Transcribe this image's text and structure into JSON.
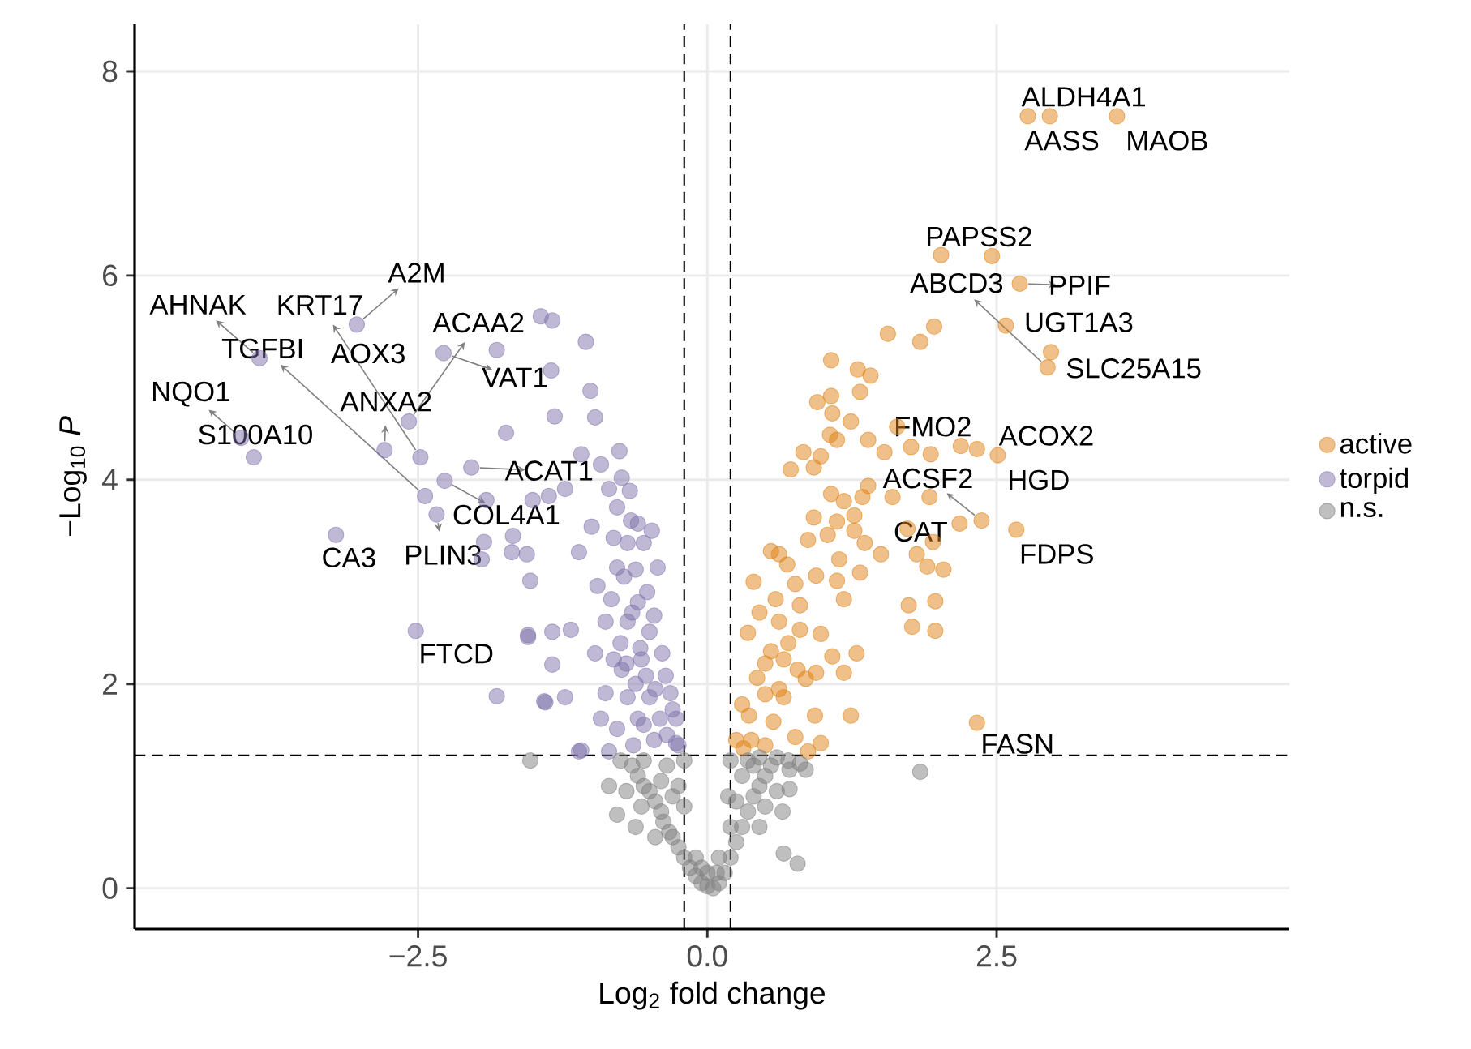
{
  "chart_data": {
    "type": "scatter",
    "xlabel": "Log$_{2}$ fold change",
    "ylabel": "−Log$_{10}$ *P*",
    "xlim": [
      -4.95,
      5.03
    ],
    "ylim": [
      -0.4,
      8.46
    ],
    "xticks": [
      {
        "value": -2.5,
        "label": "−2.5"
      },
      {
        "value": 0,
        "label": "0.0"
      },
      2.5
    ],
    "yticks": [
      0,
      2,
      4,
      6,
      8
    ],
    "grid": true,
    "legend": "right",
    "marker": "circle",
    "ref_lines": [
      {
        "axis": "x",
        "value": -0.2,
        "line_style": "dashed"
      },
      {
        "axis": "x",
        "value": 0.2,
        "line_style": "dashed"
      },
      {
        "axis": "y",
        "value": 1.3,
        "line_style": "dashed"
      }
    ],
    "series": [
      {
        "name": "active",
        "color": "#e08214",
        "x": [
          2.96,
          2.77,
          3.54,
          2.46,
          2.7,
          2.58,
          2.97,
          2.94,
          1.64,
          2.33,
          2.51,
          2.37,
          2.18,
          2.67,
          2.33,
          2.02,
          1.56,
          1.84,
          1.96,
          1.07,
          1.3,
          1.41,
          1.32,
          0.95,
          1.07,
          1.08,
          1.24,
          1.06,
          1.12,
          1.39,
          1.53,
          1.76,
          1.93,
          2.19,
          0.83,
          0.98,
          0.92,
          0.72,
          1.39,
          1.07,
          1.18,
          1.34,
          1.6,
          1.92,
          0.92,
          1.12,
          1.27,
          1.73,
          1.04,
          1.27,
          1.36,
          0.87,
          1.95,
          1.5,
          1.81,
          1.9,
          2.04,
          0.62,
          0.69,
          1.14,
          1.32,
          0.94,
          0.76,
          1.12,
          0.59,
          0.8,
          1.18,
          1.74,
          1.97,
          1.77,
          1.97,
          0.62,
          0.8,
          0.98,
          0.55,
          0.66,
          1.08,
          1.29,
          0.78,
          0.94,
          1.18,
          0.43,
          0.5,
          0.66,
          0.36,
          0.57,
          0.93,
          1.24,
          0.76,
          0.98,
          0.38,
          0.31,
          0.5,
          0.87,
          0.35,
          0.45,
          0.4,
          0.55,
          0.3,
          0.5,
          0.62,
          0.7,
          0.85,
          0.25
        ],
        "values": [
          7.56,
          7.56,
          7.56,
          6.19,
          5.92,
          5.51,
          5.25,
          5.1,
          4.52,
          4.3,
          4.24,
          3.6,
          3.57,
          3.51,
          1.62,
          6.2,
          5.43,
          5.35,
          5.5,
          5.17,
          5.08,
          5.02,
          4.86,
          4.76,
          4.82,
          4.65,
          4.57,
          4.44,
          4.39,
          4.39,
          4.27,
          4.32,
          4.25,
          4.33,
          4.27,
          4.23,
          4.12,
          4.1,
          3.94,
          3.86,
          3.79,
          3.83,
          3.83,
          3.83,
          3.63,
          3.59,
          3.65,
          3.52,
          3.46,
          3.5,
          3.38,
          3.41,
          3.39,
          3.27,
          3.27,
          3.15,
          3.12,
          3.27,
          3.17,
          3.22,
          3.09,
          3.06,
          2.98,
          3.01,
          2.83,
          2.77,
          2.83,
          2.77,
          2.81,
          2.56,
          2.52,
          2.61,
          2.53,
          2.49,
          2.32,
          2.24,
          2.27,
          2.3,
          2.14,
          2.11,
          2.11,
          2.06,
          1.9,
          1.87,
          1.69,
          1.63,
          1.69,
          1.69,
          1.48,
          1.42,
          1.45,
          1.37,
          1.4,
          1.34,
          2.5,
          2.7,
          3.0,
          3.3,
          1.8,
          2.2,
          1.95,
          2.4,
          2.05,
          1.45
        ]
      },
      {
        "name": "torpid",
        "color": "#8073ac",
        "x": [
          -3.03,
          -3.87,
          -2.48,
          -2.44,
          -2.58,
          -2.28,
          -2.79,
          -4.03,
          -3.92,
          -2.04,
          -2.27,
          -2.34,
          -3.21,
          -2.52,
          -1.44,
          -1.34,
          -1.05,
          -1.82,
          -1.35,
          -1.01,
          -1.32,
          -0.97,
          -1.74,
          -1.09,
          -0.76,
          -0.92,
          -0.74,
          -0.67,
          -0.85,
          -0.78,
          -1.91,
          -1.51,
          -1.37,
          -1.23,
          -1.0,
          -0.6,
          -0.81,
          -0.69,
          -0.55,
          -1.68,
          -1.56,
          -1.69,
          -1.93,
          -1.95,
          -1.53,
          -1.11,
          -0.95,
          -0.78,
          -0.62,
          -0.43,
          -0.83,
          -0.6,
          -0.46,
          -0.88,
          -0.69,
          -0.5,
          -1.55,
          -1.34,
          -1.18,
          -0.97,
          -0.81,
          -0.57,
          -0.39,
          -1.34,
          -0.74,
          -0.53,
          -0.36,
          -1.82,
          -1.4,
          -1.23,
          -0.88,
          -0.69,
          -0.5,
          -0.32,
          -1.11,
          -0.92,
          -0.78,
          -0.6,
          -0.41,
          -0.27,
          -0.85,
          -0.64,
          -0.46,
          -0.27,
          -0.7,
          -0.62,
          -0.45,
          -0.55,
          -0.35,
          -0.75,
          -0.58,
          -0.65,
          -0.52,
          -0.72,
          -0.48,
          -0.66,
          -0.25,
          -0.3,
          -1.41,
          -1.09,
          -1.55
        ],
        "values": [
          5.52,
          5.19,
          4.22,
          3.84,
          4.57,
          5.24,
          4.29,
          4.41,
          4.22,
          4.12,
          3.99,
          3.66,
          3.46,
          2.52,
          5.6,
          5.56,
          5.35,
          5.27,
          5.07,
          4.87,
          4.62,
          4.61,
          4.46,
          4.25,
          4.28,
          4.15,
          4.02,
          3.89,
          3.91,
          3.73,
          3.8,
          3.8,
          3.84,
          3.91,
          3.54,
          3.57,
          3.43,
          3.38,
          3.38,
          3.45,
          3.27,
          3.29,
          3.39,
          3.22,
          3.01,
          3.29,
          2.96,
          3.14,
          3.12,
          3.14,
          2.83,
          2.8,
          2.67,
          2.61,
          2.61,
          2.51,
          2.48,
          2.51,
          2.53,
          2.3,
          2.24,
          2.24,
          2.3,
          2.19,
          2.14,
          2.08,
          2.08,
          1.88,
          1.82,
          1.87,
          1.91,
          1.87,
          1.87,
          1.91,
          1.34,
          1.66,
          1.56,
          1.66,
          1.66,
          1.66,
          1.34,
          1.4,
          1.45,
          1.42,
          2.2,
          2.0,
          1.95,
          1.6,
          1.5,
          2.4,
          2.35,
          2.7,
          2.9,
          3.05,
          3.5,
          3.6,
          1.4,
          1.75,
          1.83,
          1.35,
          2.46
        ]
      },
      {
        "name": "n.s.",
        "color": "#808080",
        "x": [
          -1.53,
          1.84,
          -0.78,
          -0.57,
          0.66,
          0.78,
          0.85,
          0.71,
          0.71,
          -0.75,
          -0.65,
          -0.6,
          -0.55,
          -0.5,
          -0.45,
          -0.4,
          -0.38,
          -0.33,
          -0.3,
          -0.25,
          -0.2,
          -0.15,
          -0.1,
          -0.05,
          0.0,
          0.05,
          0.1,
          0.15,
          0.2,
          0.25,
          0.3,
          0.35,
          0.4,
          0.45,
          0.5,
          0.55,
          0.6,
          0.7,
          0.8,
          0.5,
          0.45,
          0.6,
          0.65,
          -0.7,
          -0.85,
          -0.62,
          -0.45,
          -0.3,
          -0.35,
          -0.2,
          -0.2,
          -0.25,
          0.2,
          0.18,
          0.2,
          0.3,
          0.35,
          -0.1,
          0.1,
          0.0,
          -0.05,
          0.08,
          -0.4,
          -0.55,
          0.25,
          0.4,
          0.45
        ],
        "values": [
          1.25,
          1.14,
          0.72,
          0.8,
          0.34,
          0.24,
          1.16,
          0.97,
          1.16,
          1.25,
          1.2,
          1.1,
          1.0,
          0.95,
          0.85,
          0.75,
          0.65,
          0.55,
          0.5,
          0.4,
          0.3,
          0.2,
          0.12,
          0.05,
          0.02,
          0.0,
          0.05,
          0.15,
          0.3,
          0.45,
          0.6,
          0.75,
          0.9,
          1.0,
          1.1,
          1.2,
          1.28,
          1.25,
          1.22,
          0.8,
          0.6,
          0.95,
          0.75,
          0.95,
          1.0,
          0.6,
          0.5,
          0.9,
          1.2,
          1.25,
          0.8,
          1.0,
          1.25,
          0.9,
          0.6,
          1.1,
          1.25,
          0.3,
          0.3,
          0.15,
          0.2,
          0.15,
          1.05,
          1.25,
          0.85,
          1.2,
          1.28
        ]
      }
    ],
    "annotations": [
      {
        "text": "A2M",
        "x": -3.03,
        "y": 5.52
      },
      {
        "text": "AHNAK",
        "x": -3.87,
        "y": 5.19
      },
      {
        "text": "KRT17",
        "x": -2.48,
        "y": 4.22
      },
      {
        "text": "TGFBI",
        "x": -2.44,
        "y": 3.84
      },
      {
        "text": "AOX3",
        "x": -2.58,
        "y": 4.57
      },
      {
        "text": "ACAA2",
        "x": -2.58,
        "y": 4.57
      },
      {
        "text": "VAT1",
        "x": -2.28,
        "y": 5.24
      },
      {
        "text": "ANXA2",
        "x": -2.79,
        "y": 4.29
      },
      {
        "text": "NQO1",
        "x": -4.03,
        "y": 4.41
      },
      {
        "text": "S100A10",
        "x": -3.92,
        "y": 4.22
      },
      {
        "text": "ACAT1",
        "x": -2.04,
        "y": 4.12
      },
      {
        "text": "COL4A1",
        "x": -2.27,
        "y": 3.99
      },
      {
        "text": "PLIN3",
        "x": -2.34,
        "y": 3.66
      },
      {
        "text": "CA3",
        "x": -3.21,
        "y": 3.46
      },
      {
        "text": "FTCD",
        "x": -2.52,
        "y": 2.52
      },
      {
        "text": "ALDH4A1",
        "x": 2.96,
        "y": 7.56
      },
      {
        "text": "AASS",
        "x": 2.77,
        "y": 7.56
      },
      {
        "text": "MAOB",
        "x": 3.54,
        "y": 7.56
      },
      {
        "text": "PAPSS2",
        "x": 2.46,
        "y": 6.19
      },
      {
        "text": "ABCD3",
        "x": 2.94,
        "y": 5.1
      },
      {
        "text": "PPIF",
        "x": 2.7,
        "y": 5.92
      },
      {
        "text": "UGT1A3",
        "x": 2.58,
        "y": 5.51
      },
      {
        "text": "SLC25A15",
        "x": 2.97,
        "y": 5.25
      },
      {
        "text": "FMO2",
        "x": 1.64,
        "y": 4.52
      },
      {
        "text": "ACOX2",
        "x": 2.51,
        "y": 4.24
      },
      {
        "text": "HGD",
        "x": 2.33,
        "y": 4.3
      },
      {
        "text": "ACSF2",
        "x": 2.37,
        "y": 3.6
      },
      {
        "text": "CAT",
        "x": 2.18,
        "y": 3.57
      },
      {
        "text": "FDPS",
        "x": 2.67,
        "y": 3.51
      },
      {
        "text": "FASN",
        "x": 2.33,
        "y": 1.62
      }
    ]
  }
}
